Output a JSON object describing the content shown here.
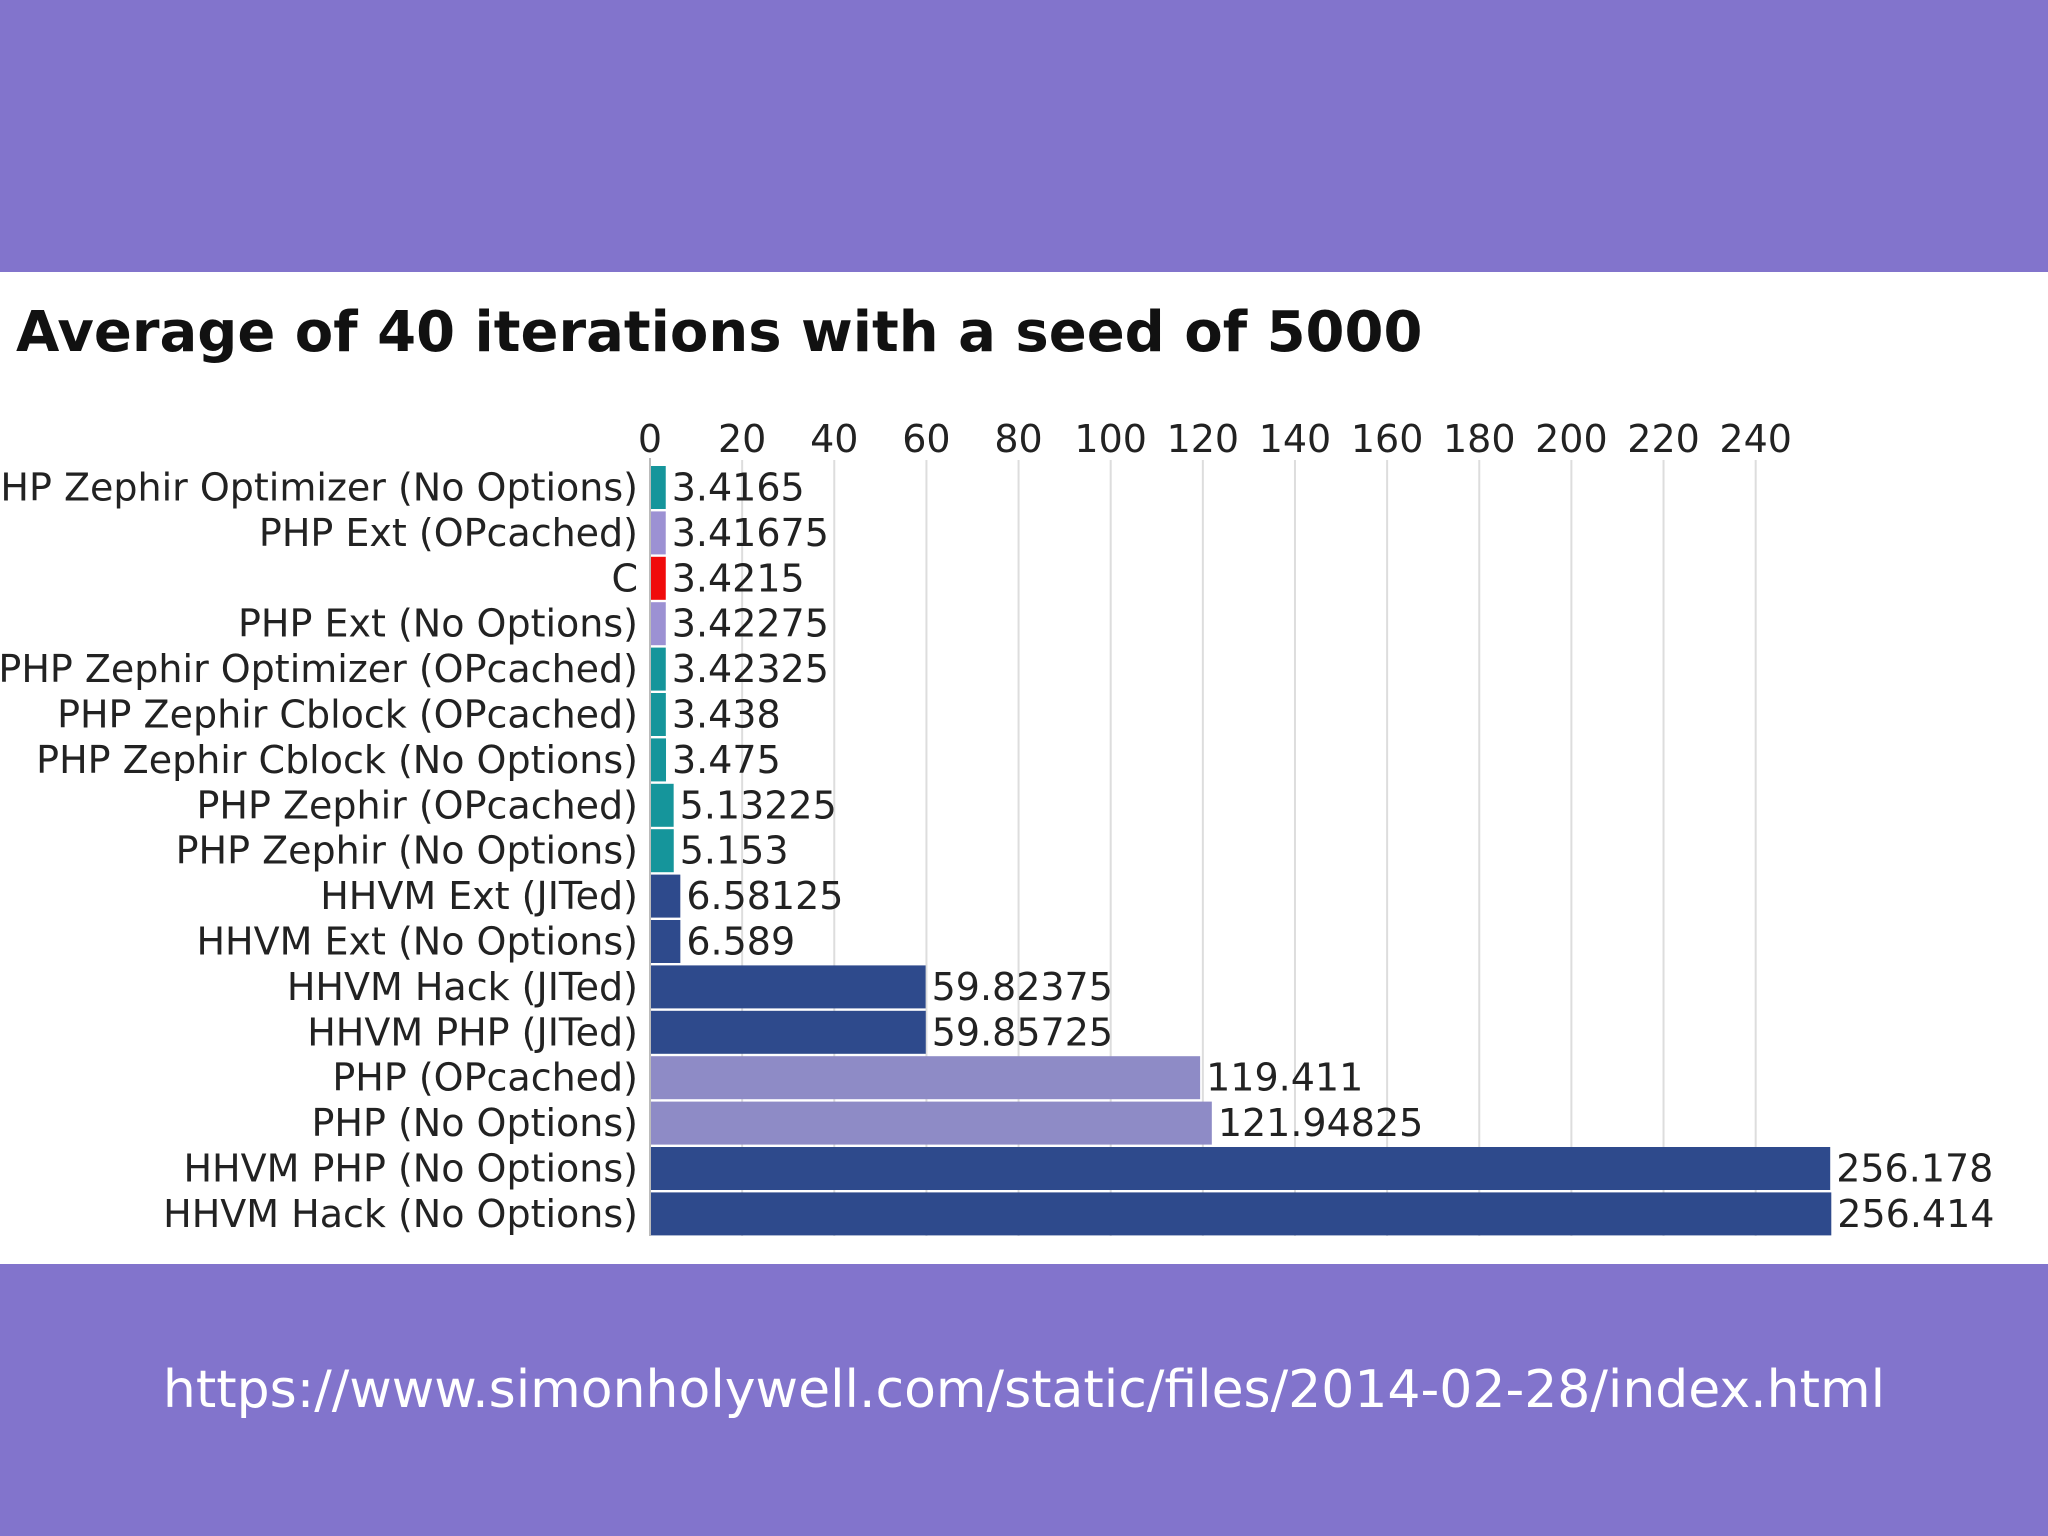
{
  "chart_data": {
    "type": "bar",
    "orientation": "horizontal",
    "title": "Average of 40 iterations with a seed of 5000",
    "xlabel": "",
    "ylabel": "",
    "xlim": [
      0,
      255
    ],
    "ticks": [
      0,
      20,
      40,
      60,
      80,
      100,
      120,
      140,
      160,
      180,
      200,
      220,
      240
    ],
    "grid": true,
    "categories": [
      "PHP Zephir Optimizer (No Options)",
      "PHP Ext (OPcached)",
      "C",
      "PHP Ext (No Options)",
      "PHP Zephir Optimizer (OPcached)",
      "PHP Zephir Cblock (OPcached)",
      "PHP Zephir Cblock (No Options)",
      "PHP Zephir (OPcached)",
      "PHP Zephir (No Options)",
      "HHVM Ext (JITed)",
      "HHVM Ext (No Options)",
      "HHVM Hack (JITed)",
      "HHVM PHP (JITed)",
      "PHP (OPcached)",
      "PHP (No Options)",
      "HHVM PHP (No Options)",
      "HHVM Hack (No Options)"
    ],
    "values": [
      3.4165,
      3.41675,
      3.4215,
      3.42275,
      3.42325,
      3.438,
      3.475,
      5.13225,
      5.153,
      6.58125,
      6.589,
      59.82375,
      59.85725,
      119.411,
      121.94825,
      256.178,
      256.414
    ],
    "value_labels": [
      "3.4165",
      "3.41675",
      "3.4215",
      "3.42275",
      "3.42325",
      "3.438",
      "3.475",
      "5.13225",
      "5.153",
      "6.58125",
      "6.589",
      "59.82375",
      "59.85725",
      "119.411",
      "121.94825",
      "256.178",
      "256.414"
    ],
    "colors": [
      "#15959b",
      "#9c91d3",
      "#f00b0b",
      "#9c91d3",
      "#15959b",
      "#15959b",
      "#15959b",
      "#15959b",
      "#15959b",
      "#2e4a8c",
      "#2e4a8c",
      "#2e4a8c",
      "#2e4a8c",
      "#8e8bc6",
      "#8e8bc6",
      "#2e4a8c",
      "#2e4a8c"
    ]
  },
  "footer": {
    "source_url": "https://www.simonholywell.com/static/files/2014-02-28/index.html"
  }
}
